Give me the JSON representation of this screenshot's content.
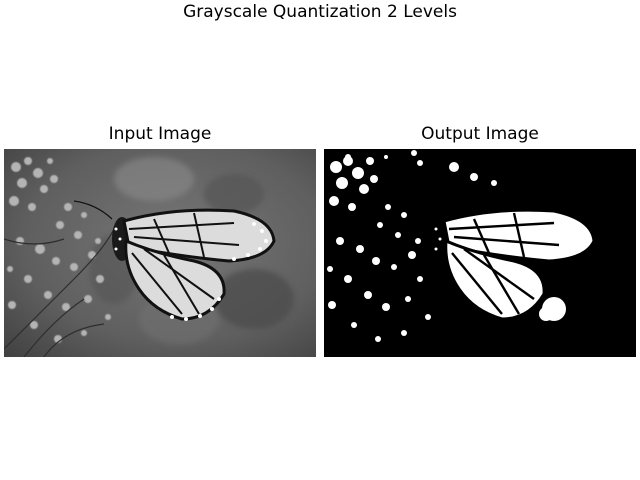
{
  "figure": {
    "title": "Grayscale Quantization 2 Levels"
  },
  "panels": [
    {
      "title": "Input Image",
      "content": "grayscale photo of a monarch butterfly on flowers"
    },
    {
      "title": "Output Image",
      "content": "binary (2-level) thresholded version of the input photo"
    }
  ],
  "colors": {
    "background": "#ffffff",
    "black": "#000000",
    "white": "#ffffff",
    "gray_mid": "#6e6e6e"
  }
}
